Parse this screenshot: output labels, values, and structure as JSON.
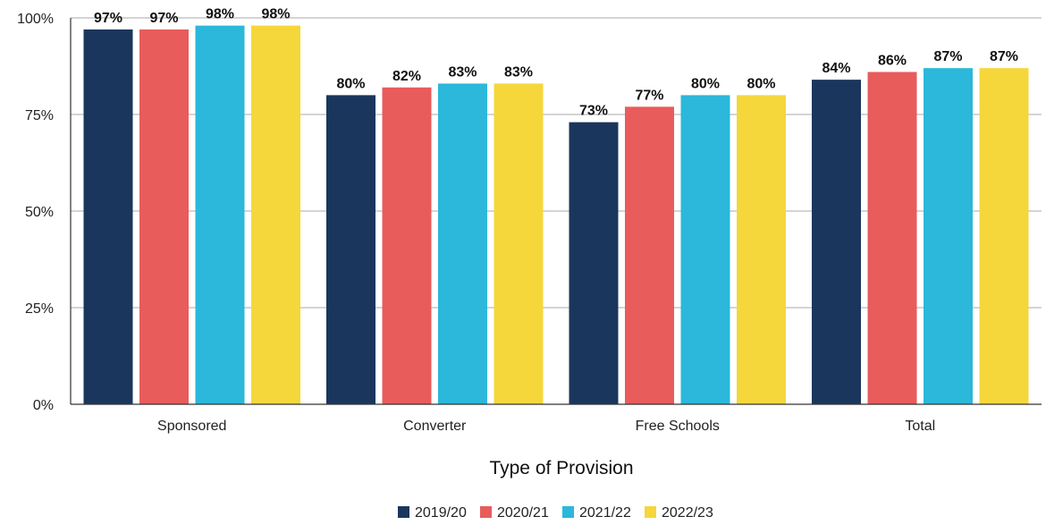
{
  "chart_data": {
    "type": "bar",
    "xlabel": "Type of Provision",
    "ylabel": "",
    "ylim": [
      0,
      100
    ],
    "yticks": [
      {
        "value": 0,
        "label": "0%"
      },
      {
        "value": 25,
        "label": "25%"
      },
      {
        "value": 50,
        "label": "50%"
      },
      {
        "value": 75,
        "label": "75%"
      },
      {
        "value": 100,
        "label": "100%"
      }
    ],
    "categories": [
      "Sponsored",
      "Converter",
      "Free Schools",
      "Total"
    ],
    "series": [
      {
        "name": "2019/20",
        "color": "#1b365d",
        "values": [
          97,
          80,
          73,
          84
        ],
        "labels": [
          "97%",
          "80%",
          "73%",
          "84%"
        ]
      },
      {
        "name": "2020/21",
        "color": "#e85c5c",
        "values": [
          97,
          82,
          77,
          86
        ],
        "labels": [
          "97%",
          "82%",
          "77%",
          "86%"
        ]
      },
      {
        "name": "2021/22",
        "color": "#2bb8da",
        "values": [
          98,
          83,
          80,
          87
        ],
        "labels": [
          "98%",
          "83%",
          "80%",
          "87%"
        ]
      },
      {
        "name": "2022/23",
        "color": "#f5d73b",
        "values": [
          98,
          83,
          80,
          87
        ],
        "labels": [
          "98%",
          "83%",
          "80%",
          "87%"
        ]
      }
    ],
    "grid": true,
    "legend_position": "bottom"
  }
}
